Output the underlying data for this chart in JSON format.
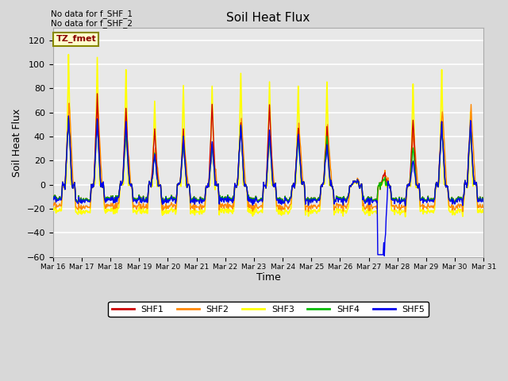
{
  "title": "Soil Heat Flux",
  "ylabel": "Soil Heat Flux",
  "xlabel": "Time",
  "ylim": [
    -60,
    130
  ],
  "yticks": [
    -60,
    -40,
    -20,
    0,
    20,
    40,
    60,
    80,
    100,
    120
  ],
  "note1": "No data for f_SHF_1",
  "note2": "No data for f_SHF_2",
  "tz_label": "TZ_fmet",
  "colors": {
    "SHF1": "#cc0000",
    "SHF2": "#ff8800",
    "SHF3": "#ffff00",
    "SHF4": "#00bb00",
    "SHF5": "#0000ee"
  },
  "bg_color": "#d8d8d8",
  "plot_bg": "#e8e8e8",
  "grid_color": "white",
  "start_day": 16,
  "end_day": 31
}
